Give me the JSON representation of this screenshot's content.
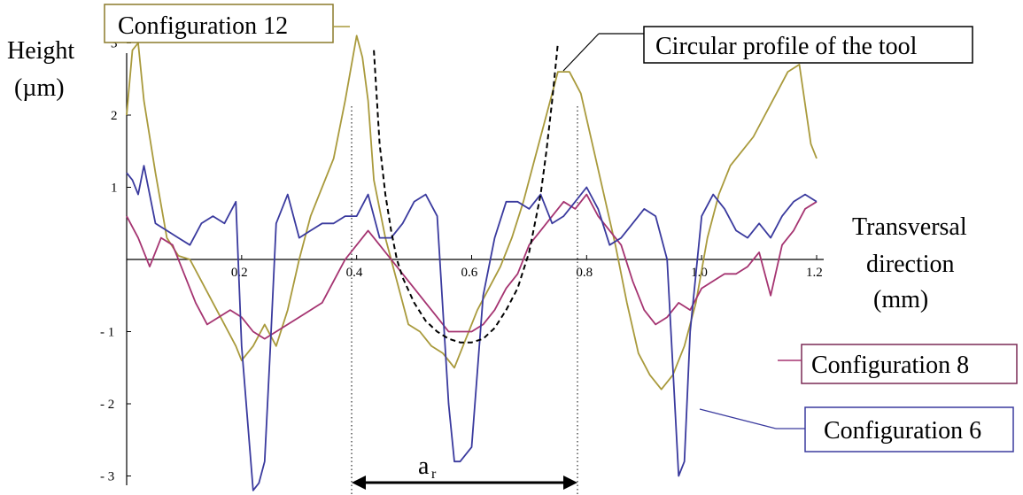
{
  "chart_data": {
    "type": "line",
    "xlim": [
      0,
      1.2
    ],
    "ylim": [
      -3.5,
      3.3
    ],
    "x_ticks": [
      0.2,
      0.4,
      0.6,
      0.8,
      1.0,
      1.2
    ],
    "x_tick_labels": [
      "0.2",
      "0.4",
      "0.6",
      "0.8",
      "1.0",
      "1.2"
    ],
    "y_ticks": [
      -3,
      -2,
      -1,
      1,
      2,
      3
    ],
    "y_tick_labels": [
      "- 3",
      "- 2",
      "- 1",
      "1",
      "2",
      "3"
    ],
    "ylabel_line1": "Height",
    "ylabel_line2": "(µm)",
    "xlabel_line1": "Transversal",
    "xlabel_line2": "direction",
    "xlabel_line3": "(mm)",
    "ar_label": "a",
    "ar_sub": "r",
    "ar_markers": [
      0.4,
      0.785
    ],
    "grid": false,
    "series": [
      {
        "name": "Configuration 12",
        "color": "#a99a3c",
        "x": [
          0.0,
          0.01,
          0.02,
          0.03,
          0.05,
          0.07,
          0.09,
          0.11,
          0.13,
          0.15,
          0.17,
          0.19,
          0.2,
          0.22,
          0.24,
          0.26,
          0.28,
          0.3,
          0.32,
          0.34,
          0.36,
          0.38,
          0.4,
          0.41,
          0.42,
          0.43,
          0.45,
          0.47,
          0.49,
          0.51,
          0.53,
          0.55,
          0.57,
          0.59,
          0.61,
          0.63,
          0.65,
          0.67,
          0.69,
          0.71,
          0.73,
          0.75,
          0.77,
          0.79,
          0.81,
          0.83,
          0.85,
          0.87,
          0.89,
          0.91,
          0.93,
          0.95,
          0.97,
          0.99,
          1.01,
          1.03,
          1.05,
          1.07,
          1.09,
          1.11,
          1.13,
          1.15,
          1.17,
          1.19,
          1.2
        ],
        "y": [
          2.0,
          2.9,
          3.0,
          2.2,
          1.2,
          0.3,
          0.05,
          0.0,
          -0.3,
          -0.6,
          -0.9,
          -1.2,
          -1.4,
          -1.2,
          -0.9,
          -1.2,
          -0.7,
          0.0,
          0.6,
          1.0,
          1.4,
          2.2,
          3.1,
          2.8,
          2.2,
          1.1,
          0.3,
          -0.3,
          -0.9,
          -1.0,
          -1.2,
          -1.3,
          -1.5,
          -1.1,
          -0.7,
          -0.4,
          -0.1,
          0.3,
          0.8,
          1.4,
          2.0,
          2.6,
          2.6,
          2.3,
          1.6,
          0.9,
          0.2,
          -0.6,
          -1.3,
          -1.6,
          -1.8,
          -1.6,
          -1.2,
          -0.6,
          0.3,
          0.9,
          1.3,
          1.5,
          1.7,
          2.0,
          2.3,
          2.6,
          2.7,
          1.6,
          1.4
        ]
      },
      {
        "name": "Configuration 8",
        "color": "#a53471",
        "x": [
          0.0,
          0.02,
          0.04,
          0.06,
          0.08,
          0.1,
          0.12,
          0.14,
          0.16,
          0.18,
          0.2,
          0.22,
          0.24,
          0.26,
          0.28,
          0.3,
          0.32,
          0.34,
          0.36,
          0.38,
          0.4,
          0.42,
          0.44,
          0.46,
          0.48,
          0.5,
          0.52,
          0.54,
          0.56,
          0.58,
          0.6,
          0.62,
          0.64,
          0.66,
          0.68,
          0.7,
          0.72,
          0.74,
          0.76,
          0.78,
          0.8,
          0.82,
          0.84,
          0.86,
          0.88,
          0.9,
          0.92,
          0.94,
          0.96,
          0.98,
          1.0,
          1.02,
          1.04,
          1.06,
          1.08,
          1.1,
          1.12,
          1.14,
          1.16,
          1.18,
          1.2
        ],
        "y": [
          0.6,
          0.3,
          -0.1,
          0.3,
          0.2,
          -0.2,
          -0.6,
          -0.9,
          -0.8,
          -0.7,
          -0.8,
          -1.0,
          -1.1,
          -1.0,
          -0.9,
          -0.8,
          -0.7,
          -0.6,
          -0.3,
          0.0,
          0.2,
          0.4,
          0.2,
          0.0,
          -0.2,
          -0.4,
          -0.6,
          -0.8,
          -1.0,
          -1.0,
          -1.0,
          -0.9,
          -0.7,
          -0.4,
          -0.2,
          0.2,
          0.4,
          0.6,
          0.8,
          0.7,
          0.9,
          0.6,
          0.4,
          0.2,
          -0.3,
          -0.7,
          -0.9,
          -0.8,
          -0.6,
          -0.7,
          -0.4,
          -0.3,
          -0.2,
          -0.2,
          -0.1,
          0.1,
          -0.5,
          0.2,
          0.4,
          0.7,
          0.8
        ]
      },
      {
        "name": "Configuration 6",
        "color": "#3a3a9e",
        "x": [
          0.0,
          0.01,
          0.02,
          0.03,
          0.05,
          0.07,
          0.09,
          0.11,
          0.13,
          0.15,
          0.17,
          0.19,
          0.2,
          0.22,
          0.23,
          0.24,
          0.25,
          0.26,
          0.28,
          0.3,
          0.32,
          0.34,
          0.36,
          0.38,
          0.4,
          0.42,
          0.44,
          0.46,
          0.48,
          0.5,
          0.52,
          0.54,
          0.56,
          0.57,
          0.58,
          0.6,
          0.62,
          0.64,
          0.66,
          0.68,
          0.7,
          0.72,
          0.74,
          0.76,
          0.78,
          0.8,
          0.82,
          0.84,
          0.86,
          0.88,
          0.9,
          0.92,
          0.94,
          0.96,
          0.97,
          0.98,
          1.0,
          1.02,
          1.04,
          1.06,
          1.08,
          1.1,
          1.12,
          1.14,
          1.16,
          1.18,
          1.2
        ],
        "y": [
          1.2,
          1.1,
          0.9,
          1.3,
          0.5,
          0.4,
          0.3,
          0.2,
          0.5,
          0.6,
          0.5,
          0.8,
          -1.2,
          -3.2,
          -3.1,
          -2.8,
          -1.2,
          0.5,
          0.9,
          0.3,
          0.4,
          0.5,
          0.5,
          0.6,
          0.6,
          0.9,
          0.3,
          0.3,
          0.5,
          0.8,
          0.9,
          0.6,
          -2.0,
          -2.8,
          -2.8,
          -2.6,
          -0.5,
          0.3,
          0.8,
          0.8,
          0.7,
          0.9,
          0.5,
          0.6,
          0.8,
          1.0,
          0.7,
          0.2,
          0.3,
          0.5,
          0.7,
          0.6,
          0.0,
          -3.0,
          -2.8,
          -1.0,
          0.6,
          0.9,
          0.7,
          0.4,
          0.3,
          0.5,
          0.3,
          0.6,
          0.8,
          0.9,
          0.8
        ]
      },
      {
        "name": "Circular profile of the tool",
        "color": "#000000",
        "dashed": true,
        "x": [
          0.43,
          0.44,
          0.45,
          0.46,
          0.47,
          0.48,
          0.5,
          0.52,
          0.54,
          0.56,
          0.58,
          0.6,
          0.62,
          0.64,
          0.66,
          0.68,
          0.7,
          0.71,
          0.72,
          0.73,
          0.74,
          0.75
        ],
        "y": [
          2.9,
          1.6,
          0.9,
          0.4,
          0.0,
          -0.25,
          -0.6,
          -0.85,
          -1.0,
          -1.1,
          -1.15,
          -1.15,
          -1.1,
          -0.95,
          -0.7,
          -0.4,
          0.1,
          0.5,
          0.9,
          1.5,
          2.2,
          3.0
        ]
      }
    ],
    "annotations": {
      "configuration_12": "Configuration 12",
      "configuration_8": "Configuration 8",
      "configuration_6": "Configuration 6",
      "circular_profile": "Circular profile of the tool"
    }
  }
}
